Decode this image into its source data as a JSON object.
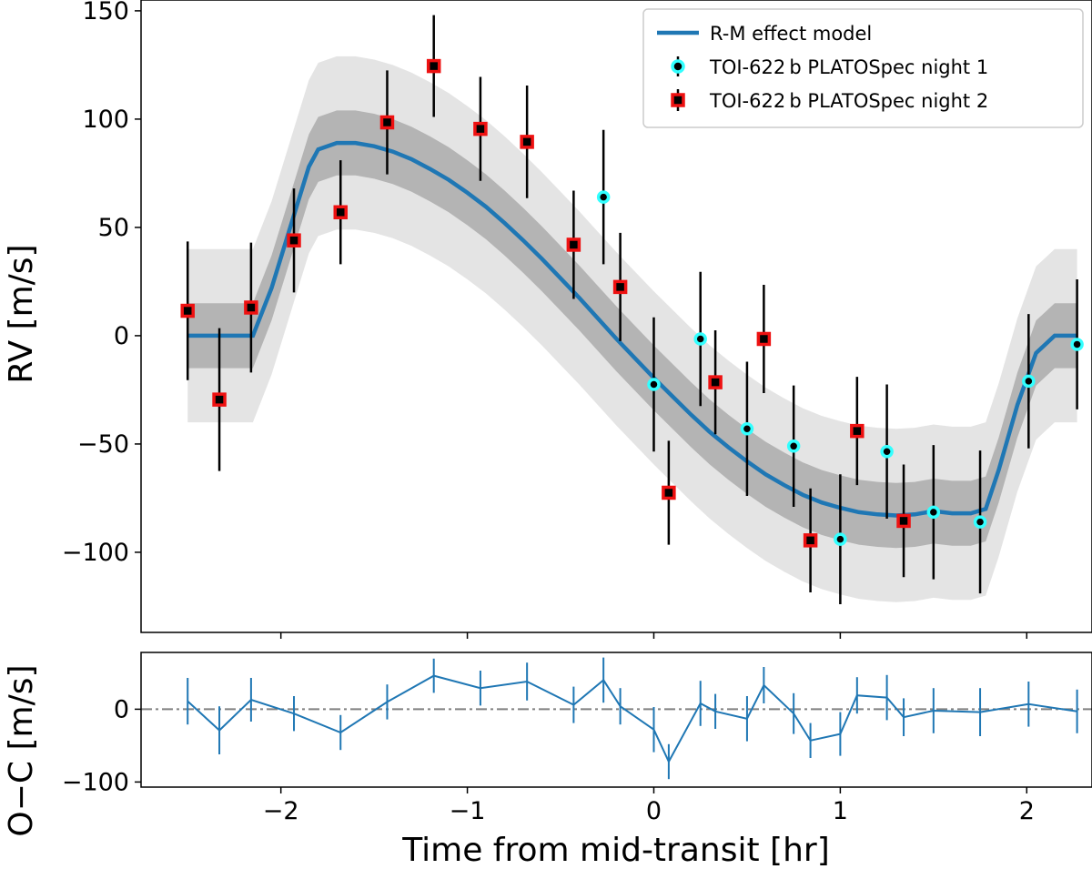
{
  "chart_data": [
    {
      "type": "scatter",
      "panel": "main",
      "ylabel": "RV [m/s]",
      "xlim": [
        -2.75,
        2.35
      ],
      "ylim": [
        -137,
        155
      ],
      "x_ticks": [
        -2,
        -1,
        0,
        1,
        2
      ],
      "x_tick_labels": [
        "−2",
        "−1",
        "0",
        "1",
        "2"
      ],
      "y_ticks": [
        -100,
        -50,
        0,
        50,
        100,
        150
      ],
      "y_tick_labels": [
        "−100",
        "−50",
        "0",
        "50",
        "100",
        "150"
      ],
      "legend": {
        "placement": "top-right",
        "entries": [
          "R-M effect model",
          "TOI-622 b PLATOSpec night 1",
          "TOI-622 b PLATOSpec night 2"
        ]
      },
      "model": {
        "name": "R-M effect model",
        "color": "#1f77b4",
        "x": [
          -2.5,
          -2.15,
          -2.05,
          -1.95,
          -1.85,
          -1.8,
          -1.7,
          -1.6,
          -1.5,
          -1.4,
          -1.3,
          -1.2,
          -1.1,
          -1.0,
          -0.9,
          -0.8,
          -0.7,
          -0.6,
          -0.5,
          -0.4,
          -0.3,
          -0.2,
          -0.1,
          0.0,
          0.1,
          0.2,
          0.3,
          0.4,
          0.5,
          0.6,
          0.7,
          0.8,
          0.9,
          1.0,
          1.1,
          1.2,
          1.3,
          1.4,
          1.5,
          1.6,
          1.7,
          1.78,
          1.85,
          1.95,
          2.05,
          2.15,
          2.27
        ],
        "y": [
          0,
          0,
          22,
          50,
          78,
          86,
          89,
          89,
          87.5,
          85,
          81.5,
          77,
          72,
          66,
          59.5,
          52,
          44,
          35.5,
          26.5,
          17.5,
          8,
          -1.5,
          -10.5,
          -19.5,
          -28,
          -36.5,
          -44.5,
          -51.5,
          -58,
          -64,
          -69,
          -73.5,
          -77,
          -79.5,
          -81.5,
          -82.5,
          -83,
          -82.5,
          -81,
          -82,
          -82,
          -80,
          -62,
          -32,
          -8,
          0,
          0
        ],
        "band_1sigma": 15,
        "band_2sigma": 40,
        "band_colors": {
          "inner": "#b4b4b4",
          "outer": "#e4e4e4"
        }
      },
      "series": [
        {
          "name": "TOI-622 b PLATOSpec night 1",
          "marker": "circle",
          "color": "#33ffff",
          "points": [
            {
              "x": -0.27,
              "y": 64,
              "err": 31
            },
            {
              "x": 0.0,
              "y": -22.5,
              "err": 31
            },
            {
              "x": 0.25,
              "y": -1.5,
              "err": 31
            },
            {
              "x": 0.5,
              "y": -43,
              "err": 31
            },
            {
              "x": 0.75,
              "y": -51,
              "err": 28
            },
            {
              "x": 1.0,
              "y": -94,
              "err": 30
            },
            {
              "x": 1.25,
              "y": -53.5,
              "err": 31
            },
            {
              "x": 1.5,
              "y": -81.5,
              "err": 31
            },
            {
              "x": 1.75,
              "y": -86,
              "err": 33
            },
            {
              "x": 2.01,
              "y": -21,
              "err": 31
            },
            {
              "x": 2.27,
              "y": -4,
              "err": 30
            }
          ]
        },
        {
          "name": "TOI-622 b PLATOSpec night 2",
          "marker": "square",
          "color": "#ee1111",
          "points": [
            {
              "x": -2.5,
              "y": 11.5,
              "err": 32
            },
            {
              "x": -2.33,
              "y": -29.5,
              "err": 33
            },
            {
              "x": -2.16,
              "y": 13,
              "err": 30
            },
            {
              "x": -1.93,
              "y": 44,
              "err": 24
            },
            {
              "x": -1.68,
              "y": 57,
              "err": 24
            },
            {
              "x": -1.43,
              "y": 98.5,
              "err": 24
            },
            {
              "x": -1.18,
              "y": 124.5,
              "err": 23.5
            },
            {
              "x": -0.93,
              "y": 95.5,
              "err": 24
            },
            {
              "x": -0.68,
              "y": 89.5,
              "err": 26
            },
            {
              "x": -0.43,
              "y": 42,
              "err": 25
            },
            {
              "x": -0.18,
              "y": 22.5,
              "err": 25
            },
            {
              "x": 0.08,
              "y": -72.5,
              "err": 24
            },
            {
              "x": 0.33,
              "y": -21.5,
              "err": 24
            },
            {
              "x": 0.59,
              "y": -1.5,
              "err": 25
            },
            {
              "x": 0.84,
              "y": -94.5,
              "err": 24
            },
            {
              "x": 1.09,
              "y": -44,
              "err": 25
            },
            {
              "x": 1.34,
              "y": -85.5,
              "err": 26
            }
          ]
        }
      ]
    },
    {
      "type": "line",
      "panel": "residuals",
      "xlabel": "Time from mid-transit [hr]",
      "ylabel": "O−C [m/s]",
      "xlim": [
        -2.75,
        2.35
      ],
      "ylim": [
        -107,
        78
      ],
      "y_ticks": [
        -100,
        0
      ],
      "y_tick_labels": [
        "−100",
        "0"
      ],
      "zero_line": {
        "y": 0,
        "style": "dash-dot",
        "color": "#808080"
      },
      "color": "#1f77b4",
      "points": [
        {
          "x": -2.5,
          "y": 11,
          "err": 32
        },
        {
          "x": -2.33,
          "y": -29,
          "err": 33
        },
        {
          "x": -2.16,
          "y": 13,
          "err": 30
        },
        {
          "x": -1.93,
          "y": -6,
          "err": 24
        },
        {
          "x": -1.68,
          "y": -32,
          "err": 24
        },
        {
          "x": -1.43,
          "y": 10,
          "err": 24
        },
        {
          "x": -1.18,
          "y": 46,
          "err": 23.5
        },
        {
          "x": -0.93,
          "y": 29,
          "err": 24
        },
        {
          "x": -0.68,
          "y": 38,
          "err": 26
        },
        {
          "x": -0.43,
          "y": 6,
          "err": 25
        },
        {
          "x": -0.27,
          "y": 40,
          "err": 31
        },
        {
          "x": -0.18,
          "y": 4,
          "err": 25
        },
        {
          "x": 0.0,
          "y": -28,
          "err": 31
        },
        {
          "x": 0.08,
          "y": -72,
          "err": 24
        },
        {
          "x": 0.25,
          "y": 8,
          "err": 31
        },
        {
          "x": 0.33,
          "y": -3,
          "err": 24
        },
        {
          "x": 0.5,
          "y": -13,
          "err": 31
        },
        {
          "x": 0.59,
          "y": 33,
          "err": 25
        },
        {
          "x": 0.75,
          "y": -6,
          "err": 28
        },
        {
          "x": 0.84,
          "y": -43,
          "err": 24
        },
        {
          "x": 1.0,
          "y": -34,
          "err": 30
        },
        {
          "x": 1.09,
          "y": 19,
          "err": 25
        },
        {
          "x": 1.25,
          "y": 16,
          "err": 31
        },
        {
          "x": 1.34,
          "y": -11,
          "err": 26
        },
        {
          "x": 1.5,
          "y": -2,
          "err": 31
        },
        {
          "x": 1.75,
          "y": -4,
          "err": 33
        },
        {
          "x": 2.01,
          "y": 7,
          "err": 31
        },
        {
          "x": 2.27,
          "y": -3,
          "err": 30
        }
      ]
    }
  ]
}
